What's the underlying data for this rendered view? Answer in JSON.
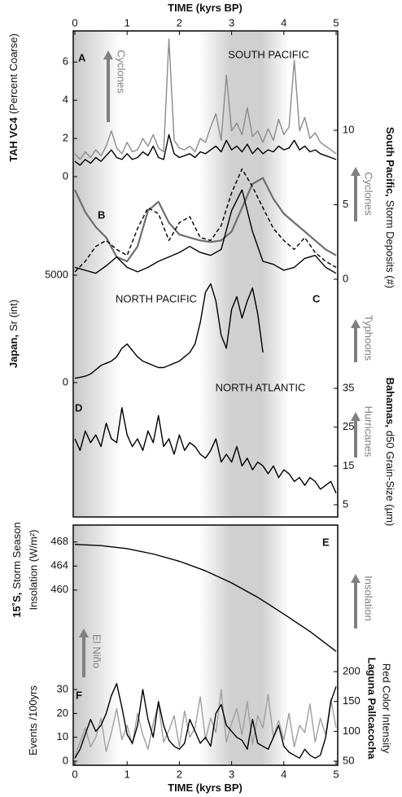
{
  "chart_data": [
    {
      "type": "line",
      "panel": "A",
      "region": "SOUTH PACIFIC",
      "arrow_label": "Cyclones",
      "x_label": "TIME (kyrs BP)",
      "x_axis": "top",
      "xlim": [
        0,
        5
      ],
      "xticks": [
        0,
        1,
        2,
        3,
        4,
        5
      ],
      "ylabel_bold": "TAH VC4",
      "ylabel": "(Percent Coarse)",
      "y_side": "left",
      "ylim": [
        0,
        7.5
      ],
      "yticks": [
        0,
        2,
        4,
        6
      ],
      "x": [
        0,
        0.1,
        0.2,
        0.3,
        0.4,
        0.5,
        0.6,
        0.7,
        0.8,
        0.9,
        1,
        1.1,
        1.2,
        1.3,
        1.4,
        1.5,
        1.6,
        1.7,
        1.8,
        1.9,
        2,
        2.1,
        2.2,
        2.3,
        2.4,
        2.5,
        2.6,
        2.7,
        2.8,
        2.9,
        3,
        3.1,
        3.2,
        3.3,
        3.4,
        3.5,
        3.6,
        3.7,
        3.8,
        3.9,
        4,
        4.1,
        4.2,
        4.3,
        4.4,
        4.5,
        4.6,
        4.7,
        4.8,
        4.9,
        5
      ],
      "series": [
        {
          "color": "#8c8c8c",
          "values": [
            1.2,
            0.9,
            1.3,
            1.0,
            1.4,
            1.1,
            1.6,
            2.4,
            1.5,
            1.2,
            1.8,
            1.3,
            1.4,
            2.0,
            1.6,
            2.2,
            1.5,
            1.3,
            7.2,
            1.9,
            1.5,
            1.4,
            1.6,
            1.3,
            2.0,
            1.8,
            2.6,
            3.3,
            1.9,
            5.3,
            2.4,
            2.8,
            2.2,
            3.6,
            2.1,
            2.4,
            1.8,
            2.5,
            1.9,
            3.0,
            2.2,
            2.6,
            6.1,
            2.4,
            3.1,
            2.0,
            2.3,
            1.8,
            1.6,
            1.4,
            1.2
          ]
        },
        {
          "color": "#000000",
          "values": [
            0.8,
            0.6,
            0.9,
            0.7,
            1.0,
            0.8,
            1.1,
            1.4,
            1.0,
            0.9,
            1.2,
            0.9,
            1.0,
            1.3,
            1.1,
            1.6,
            1.0,
            0.9,
            2.2,
            1.2,
            1.0,
            1.1,
            1.2,
            1.0,
            1.3,
            1.2,
            1.4,
            1.6,
            1.3,
            1.9,
            1.4,
            1.6,
            1.3,
            1.7,
            1.2,
            1.5,
            1.2,
            1.4,
            1.3,
            1.6,
            1.4,
            1.5,
            1.9,
            1.4,
            1.6,
            1.3,
            1.4,
            1.2,
            1.1,
            1.0,
            0.9
          ]
        }
      ]
    },
    {
      "type": "line",
      "panel": "B",
      "arrow_label": "Cyclones",
      "xlim": [
        0,
        5
      ],
      "ylabel_bold": "South Pacific,",
      "ylabel": "Storm Deposits (#)",
      "y_side": "right",
      "ylim": [
        0,
        10
      ],
      "yticks": [
        0,
        5,
        10
      ],
      "x": [
        0,
        0.2,
        0.4,
        0.6,
        0.8,
        1,
        1.2,
        1.4,
        1.6,
        1.8,
        2,
        2.2,
        2.4,
        2.6,
        2.8,
        3,
        3.2,
        3.4,
        3.6,
        3.8,
        4,
        4.2,
        4.4,
        4.6,
        4.8,
        5
      ],
      "series": [
        {
          "color": "#6e6e6e",
          "line_style": "thick",
          "values": [
            6.0,
            4.5,
            3.5,
            2.8,
            1.5,
            1.2,
            2.2,
            4.6,
            5.2,
            3.8,
            3.0,
            2.8,
            2.6,
            2.5,
            2.6,
            3.2,
            4.8,
            6.4,
            6.8,
            5.4,
            4.4,
            3.8,
            3.2,
            2.6,
            2.0,
            1.6
          ]
        },
        {
          "color": "#000000",
          "line_style": "dashed",
          "values": [
            0.5,
            1.2,
            2.2,
            2.6,
            2.0,
            1.6,
            3.4,
            4.8,
            4.4,
            2.6,
            3.8,
            4.2,
            2.8,
            2.6,
            3.6,
            5.8,
            7.4,
            6.2,
            4.8,
            3.4,
            2.6,
            2.0,
            2.8,
            1.8,
            1.2,
            0.8
          ]
        },
        {
          "color": "#000000",
          "values": [
            0.8,
            0.6,
            0.4,
            0.9,
            1.5,
            0.8,
            0.5,
            0.8,
            1.2,
            1.5,
            1.8,
            2.2,
            1.8,
            1.6,
            2.0,
            4.6,
            6.0,
            3.2,
            1.2,
            1.0,
            0.6,
            0.8,
            1.4,
            1.6,
            0.8,
            0.4
          ]
        }
      ]
    },
    {
      "type": "line",
      "panel": "C",
      "region": "NORTH PACIFIC",
      "arrow_label": "Typhoons",
      "xlim": [
        0,
        5
      ],
      "ylabel_bold": "Japan,",
      "ylabel": "Sr (int)",
      "y_side": "left",
      "ylim": [
        0,
        5000
      ],
      "yticks": [
        0,
        5000
      ],
      "x": [
        0,
        0.1,
        0.2,
        0.3,
        0.4,
        0.5,
        0.6,
        0.7,
        0.8,
        0.9,
        1,
        1.1,
        1.2,
        1.3,
        1.4,
        1.5,
        1.6,
        1.7,
        1.8,
        1.9,
        2,
        2.1,
        2.2,
        2.3,
        2.4,
        2.5,
        2.6,
        2.7,
        2.8,
        2.9,
        3,
        3.1,
        3.2,
        3.3,
        3.4,
        3.5,
        3.6
      ],
      "series": [
        {
          "color": "#000000",
          "values": [
            200,
            250,
            300,
            400,
            600,
            800,
            900,
            1000,
            1200,
            1600,
            1800,
            1500,
            1200,
            1000,
            900,
            800,
            700,
            700,
            800,
            900,
            1000,
            1200,
            1400,
            1800,
            2800,
            4200,
            4600,
            3800,
            2200,
            1600,
            3400,
            4000,
            3000,
            3800,
            4400,
            3200,
            1400
          ]
        }
      ]
    },
    {
      "type": "line",
      "panel": "D",
      "region": "NORTH ATLANTIC",
      "arrow_label": "Hurricanes",
      "xlim": [
        0,
        5
      ],
      "ylabel_bold": "Bahamas,",
      "ylabel": "d50 Grain-Size (µm)",
      "y_side": "right",
      "ylim": [
        5,
        35
      ],
      "yticks": [
        5,
        15,
        25,
        35
      ],
      "x": [
        0,
        0.1,
        0.2,
        0.3,
        0.4,
        0.5,
        0.6,
        0.7,
        0.8,
        0.9,
        1,
        1.1,
        1.2,
        1.3,
        1.4,
        1.5,
        1.6,
        1.7,
        1.8,
        1.9,
        2,
        2.1,
        2.2,
        2.3,
        2.4,
        2.5,
        2.6,
        2.7,
        2.8,
        2.9,
        3,
        3.1,
        3.2,
        3.3,
        3.4,
        3.5,
        3.6,
        3.7,
        3.8,
        3.9,
        4,
        4.1,
        4.2,
        4.3,
        4.4,
        4.5,
        4.6,
        4.7,
        4.8,
        4.9,
        5
      ],
      "series": [
        {
          "color": "#000000",
          "values": [
            22,
            19,
            24,
            21,
            23,
            20,
            26,
            22,
            21,
            30,
            23,
            20,
            22,
            19,
            24,
            21,
            28,
            20,
            22,
            18,
            23,
            19,
            21,
            20,
            18,
            17,
            19,
            22,
            16,
            18,
            16,
            20,
            15,
            17,
            14,
            16,
            15,
            13,
            15,
            12,
            14,
            13,
            11,
            12,
            10,
            12,
            11,
            9,
            10,
            11,
            8
          ]
        }
      ]
    },
    {
      "type": "line",
      "panel": "E",
      "arrow_label": "Insolation",
      "xlim": [
        0,
        5
      ],
      "ylabel_bold": "15˚S,",
      "ylabel": "Storm Season",
      "ylabel2": "Insolation (W/m²)",
      "y_side": "left",
      "ylim": [
        449,
        470
      ],
      "yticks": [
        460,
        464,
        468
      ],
      "x": [
        0,
        0.5,
        1,
        1.5,
        2,
        2.5,
        3,
        3.5,
        4,
        4.5,
        5
      ],
      "series": [
        {
          "color": "#000000",
          "values": [
            467.6,
            467.4,
            466.9,
            466.0,
            464.8,
            463.2,
            461.2,
            458.8,
            456.0,
            453.1,
            449.8
          ]
        }
      ]
    },
    {
      "type": "line",
      "panel": "F",
      "arrow_label": "El Niño",
      "x_label": "TIME (kyrs BP)",
      "x_axis": "bottom",
      "xlim": [
        0,
        5
      ],
      "xticks": [
        0,
        1,
        2,
        3,
        4,
        5
      ],
      "ylabel": "Events /100yrs",
      "y_side": "left",
      "ylim": [
        0,
        37.5
      ],
      "yticks": [
        0,
        10,
        20,
        30
      ],
      "y2label_bold": "Laguna Pallcacocha",
      "y2label": "Red Color Intensity",
      "y2lim": [
        50,
        200
      ],
      "y2ticks": [
        50,
        100,
        150,
        200
      ],
      "x": [
        0,
        0.1,
        0.2,
        0.3,
        0.4,
        0.5,
        0.6,
        0.7,
        0.8,
        0.9,
        1,
        1.1,
        1.2,
        1.3,
        1.4,
        1.5,
        1.6,
        1.7,
        1.8,
        1.9,
        2,
        2.1,
        2.2,
        2.3,
        2.4,
        2.5,
        2.6,
        2.7,
        2.8,
        2.9,
        3,
        3.1,
        3.2,
        3.3,
        3.4,
        3.5,
        3.6,
        3.7,
        3.8,
        3.9,
        4,
        4.1,
        4.2,
        4.3,
        4.4,
        4.5,
        4.6,
        4.7,
        4.8,
        4.9,
        5
      ],
      "series": [
        {
          "color": "#a0a0a0",
          "values": [
            2,
            8,
            14,
            6,
            10,
            18,
            4,
            12,
            22,
            9,
            15,
            7,
            20,
            11,
            5,
            16,
            24,
            8,
            13,
            19,
            6,
            21,
            10,
            14,
            27,
            9,
            18,
            12,
            30,
            8,
            16,
            22,
            11,
            25,
            7,
            19,
            14,
            28,
            10,
            17,
            9,
            20,
            6,
            15,
            12,
            24,
            8,
            18,
            11,
            26,
            14
          ]
        },
        {
          "color": "#000000",
          "axis": "y2",
          "values": [
            55,
            70,
            95,
            120,
            100,
            110,
            130,
            160,
            180,
            140,
            95,
            80,
            110,
            170,
            120,
            90,
            150,
            110,
            85,
            75,
            70,
            80,
            120,
            100,
            80,
            90,
            75,
            130,
            145,
            110,
            100,
            90,
            85,
            70,
            120,
            80,
            75,
            70,
            90,
            110,
            75,
            65,
            60,
            55,
            70,
            60,
            55,
            60,
            90,
            150,
            175
          ]
        }
      ]
    }
  ]
}
